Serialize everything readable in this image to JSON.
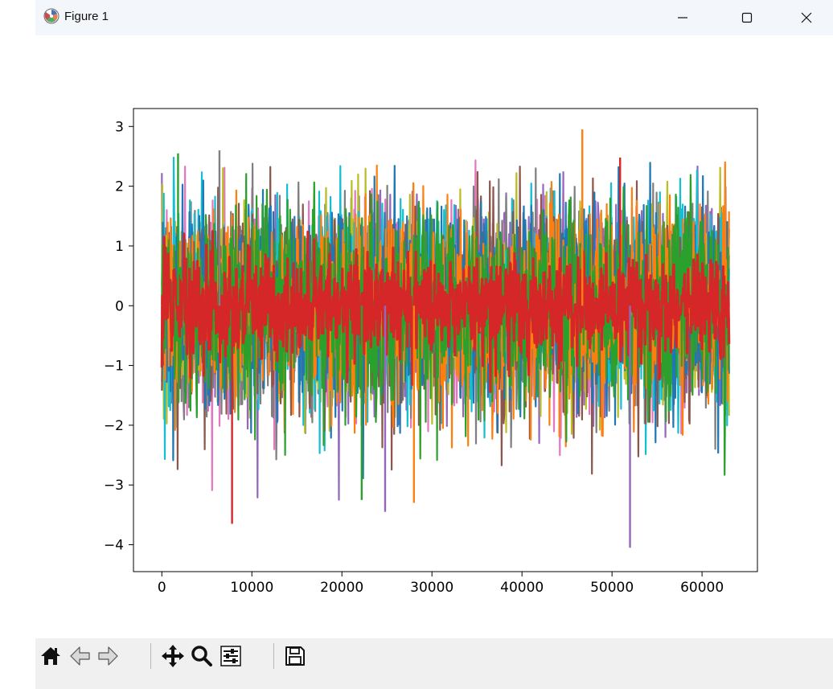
{
  "window": {
    "title": "Figure 1"
  },
  "titlebar_icons": {
    "app": "matplotlib-logo-icon",
    "minimize": "minimize-icon",
    "maximize": "maximize-icon",
    "close": "close-icon"
  },
  "toolbar": {
    "buttons": [
      {
        "name": "home-icon"
      },
      {
        "name": "back-arrow-icon"
      },
      {
        "name": "forward-arrow-icon"
      },
      {
        "name": "pan-icon"
      },
      {
        "name": "zoom-icon"
      },
      {
        "name": "configure-subplots-icon"
      },
      {
        "name": "save-icon"
      }
    ]
  },
  "chart_data": {
    "type": "line",
    "title": "",
    "xlabel": "",
    "ylabel": "",
    "xlim": [
      -3150,
      66150
    ],
    "ylim": [
      -4.45,
      3.3
    ],
    "x_ticks": [
      0,
      10000,
      20000,
      30000,
      40000,
      50000,
      60000
    ],
    "y_ticks": [
      3,
      2,
      1,
      0,
      -1,
      -2,
      -3,
      -4
    ],
    "x_tick_labels": [
      "0",
      "10000",
      "20000",
      "30000",
      "40000",
      "50000",
      "60000"
    ],
    "y_tick_labels": [
      "3",
      "2",
      "1",
      "0",
      "−1",
      "−2",
      "−3",
      "−4"
    ],
    "n_points": 63000,
    "grid": false,
    "legend": "none",
    "series_colors": [
      "#1f77b4",
      "#ff7f0e",
      "#2ca02c",
      "#d62728",
      "#9467bd",
      "#8c564b",
      "#e377c2",
      "#7f7f7f",
      "#bcbd22",
      "#17becf"
    ],
    "notable_extremes": [
      {
        "x": 46700,
        "y": 2.95
      },
      {
        "x": 6400,
        "y": 2.6
      },
      {
        "x": 1800,
        "y": 2.55
      },
      {
        "x": 50900,
        "y": 2.48
      },
      {
        "x": 52000,
        "y": -4.05
      },
      {
        "x": 7800,
        "y": -3.65
      },
      {
        "x": 28000,
        "y": -3.3
      },
      {
        "x": 24800,
        "y": -3.45
      },
      {
        "x": 22200,
        "y": -3.25
      }
    ]
  }
}
